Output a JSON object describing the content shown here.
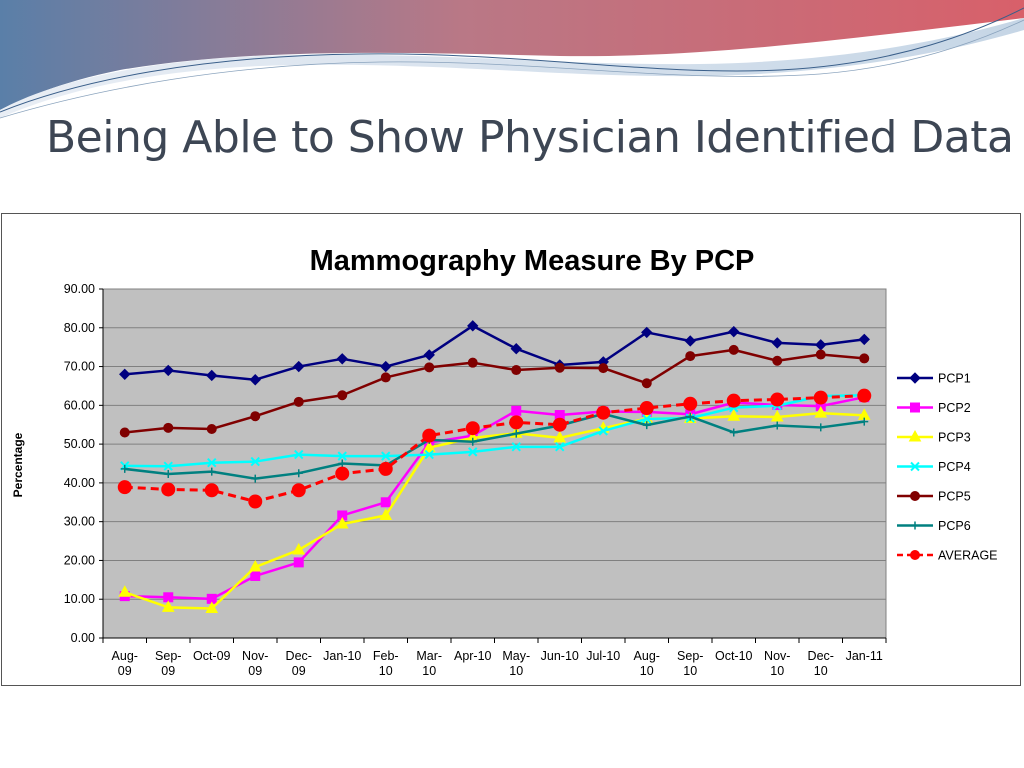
{
  "slide": {
    "title": "Being Able to Show Physician Identified Data"
  },
  "colors": {
    "plot_background": "#c0c0c0",
    "gridline": "#808080",
    "banner_red": "#c0505a",
    "banner_blue": "#7a9ab8"
  },
  "chart_data": {
    "type": "line",
    "title": "Mammography Measure By PCP",
    "ylabel": "Percentage",
    "xlabel": "",
    "ylim": [
      0,
      90
    ],
    "yticks": [
      "0.00",
      "10.00",
      "20.00",
      "30.00",
      "40.00",
      "50.00",
      "60.00",
      "70.00",
      "80.00",
      "90.00"
    ],
    "grid": true,
    "legend_position": "right",
    "categories": [
      "Aug-09",
      "Sep-09",
      "Oct-09",
      "Nov-09",
      "Dec-09",
      "Jan-10",
      "Feb-10",
      "Mar-10",
      "Apr-10",
      "May-10",
      "Jun-10",
      "Jul-10",
      "Aug-10",
      "Sep-10",
      "Oct-10",
      "Nov-10",
      "Dec-10",
      "Jan-11"
    ],
    "category_labels": [
      [
        "Aug-",
        "09"
      ],
      [
        "Sep-",
        "09"
      ],
      [
        "Oct-09"
      ],
      [
        "Nov-",
        "09"
      ],
      [
        "Dec-",
        "09"
      ],
      [
        "Jan-10"
      ],
      [
        "Feb-",
        "10"
      ],
      [
        "Mar-",
        "10"
      ],
      [
        "Apr-10"
      ],
      [
        "May-",
        "10"
      ],
      [
        "Jun-10"
      ],
      [
        "Jul-10"
      ],
      [
        "Aug-",
        "10"
      ],
      [
        "Sep-",
        "10"
      ],
      [
        "Oct-10"
      ],
      [
        "Nov-",
        "10"
      ],
      [
        "Dec-",
        "10"
      ],
      [
        "Jan-11"
      ]
    ],
    "series": [
      {
        "name": "PCP1",
        "color": "#000080",
        "marker": "diamond",
        "dash": "solid",
        "values": [
          68.0,
          69.0,
          67.7,
          66.6,
          70.0,
          72.0,
          70.0,
          73.0,
          80.5,
          74.6,
          70.4,
          71.2,
          78.8,
          76.6,
          79.0,
          76.1,
          75.6,
          77.0
        ]
      },
      {
        "name": "PCP2",
        "color": "#ff00ff",
        "marker": "square",
        "dash": "solid",
        "values": [
          10.8,
          10.5,
          10.1,
          16.0,
          19.5,
          31.6,
          35.0,
          50.4,
          52.2,
          58.6,
          57.5,
          58.4,
          58.3,
          57.7,
          60.7,
          60.1,
          59.8,
          62.1
        ]
      },
      {
        "name": "PCP3",
        "color": "#ffff00",
        "marker": "triangle",
        "dash": "solid",
        "values": [
          11.8,
          7.9,
          7.6,
          18.3,
          22.7,
          29.4,
          31.6,
          49.1,
          51.6,
          52.8,
          51.6,
          54.1,
          56.6,
          56.6,
          57.2,
          57.0,
          58.0,
          57.4
        ]
      },
      {
        "name": "PCP4",
        "color": "#00ffff",
        "marker": "x",
        "dash": "solid",
        "values": [
          44.4,
          44.3,
          45.2,
          45.5,
          47.3,
          46.9,
          46.9,
          47.3,
          48.0,
          49.3,
          49.3,
          53.4,
          56.5,
          56.7,
          59.4,
          59.9,
          62.4,
          62.6
        ]
      },
      {
        "name": "PCP5",
        "color": "#800000",
        "marker": "circle",
        "dash": "solid",
        "values": [
          53.0,
          54.2,
          53.9,
          57.2,
          60.9,
          62.6,
          67.2,
          69.8,
          71.0,
          69.1,
          69.7,
          69.6,
          65.7,
          72.7,
          74.3,
          71.5,
          73.1,
          72.1
        ]
      },
      {
        "name": "PCP6",
        "color": "#008080",
        "marker": "plus",
        "dash": "solid",
        "values": [
          43.6,
          42.3,
          42.9,
          41.1,
          42.5,
          45.0,
          44.5,
          51.1,
          50.6,
          52.7,
          54.8,
          57.8,
          54.9,
          57.1,
          53.0,
          54.8,
          54.3,
          55.8
        ]
      },
      {
        "name": "AVERAGE",
        "color": "#ff0000",
        "marker": "circle-large",
        "dash": "dashed",
        "values": [
          38.9,
          38.3,
          38.1,
          35.2,
          38.1,
          42.4,
          43.6,
          52.2,
          54.1,
          55.6,
          55.0,
          58.1,
          59.3,
          60.4,
          61.2,
          61.5,
          62.0,
          62.5
        ]
      }
    ]
  }
}
